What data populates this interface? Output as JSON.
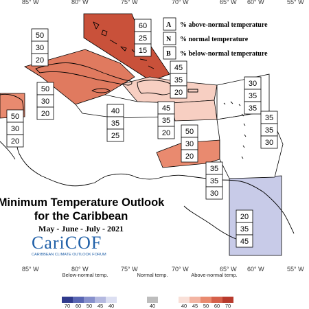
{
  "map": {
    "longitude_labels": [
      "85° W",
      "80° W",
      "75° W",
      "70° W",
      "65° W",
      "60° W",
      "55° W"
    ],
    "legend_key": [
      {
        "letter": "A",
        "text": "% above-normal temperature"
      },
      {
        "letter": "N",
        "text": "% normal temperature"
      },
      {
        "letter": "B",
        "text": "% below-normal temperature"
      }
    ],
    "regions": [
      {
        "id": "bahamas",
        "fill": "#c9513a",
        "values": [
          "60",
          "25",
          "15"
        ]
      },
      {
        "id": "northwest-caribbean",
        "fill": "#e98a6f",
        "values": [
          "50",
          "30",
          "20"
        ]
      },
      {
        "id": "cuba",
        "fill": "#e07a5f",
        "values": [
          "50",
          "30",
          "20"
        ]
      },
      {
        "id": "jamaica-channel",
        "fill": "#ffffff",
        "values": [
          "40",
          "35",
          "25"
        ]
      },
      {
        "id": "hispaniola",
        "fill": "#f7cfc2",
        "values": [
          "45",
          "35",
          "20"
        ]
      },
      {
        "id": "puerto-rico",
        "fill": "#f7cfc2",
        "values": [
          "45",
          "35",
          "20"
        ]
      },
      {
        "id": "guianas",
        "fill": "#c8cbe8",
        "values": [
          "20",
          "35",
          "45"
        ]
      },
      {
        "id": "windward-islands",
        "fill": "#ffffff",
        "values": [
          "35",
          "35",
          "30"
        ]
      },
      {
        "id": "leeward-islands",
        "fill": "#ffffff",
        "values": [
          "30",
          "35",
          "35"
        ]
      },
      {
        "id": "eastern-caribbean",
        "fill": "#ffffff",
        "values": [
          "35",
          "35",
          "30"
        ]
      },
      {
        "id": "abc-islands",
        "fill": "#e98a6f",
        "values": [
          "50",
          "30",
          "20"
        ]
      },
      {
        "id": "belize",
        "fill": "#e98a6f",
        "values": [
          "50",
          "30",
          "20"
        ]
      }
    ],
    "title_line1": "Minimum Temperature Outlook",
    "title_line2": "for the Caribbean",
    "subtitle": "May - June - July - 2021",
    "logo_text": "CariCOF",
    "logo_subtext": "CARIBBEAN CLIMATE OUTLOOK FORUM"
  },
  "colorbar": {
    "below_label": "Below-normal temp.",
    "normal_label": "Normal temp.",
    "above_label": "Above-normal temp.",
    "below_ticks": [
      "70",
      "60",
      "50",
      "45",
      "40"
    ],
    "normal_ticks": [
      "40"
    ],
    "above_ticks": [
      "40",
      "45",
      "50",
      "60",
      "70"
    ],
    "below_colors": [
      "#2f3a8c",
      "#5966b3",
      "#8790cc",
      "#b4b9e0",
      "#dcdff2"
    ],
    "normal_colors": [
      "#bdbdbd"
    ],
    "above_colors": [
      "#f9e0d8",
      "#f3b5a3",
      "#e98a6f",
      "#d5604a",
      "#b83a2c"
    ]
  }
}
